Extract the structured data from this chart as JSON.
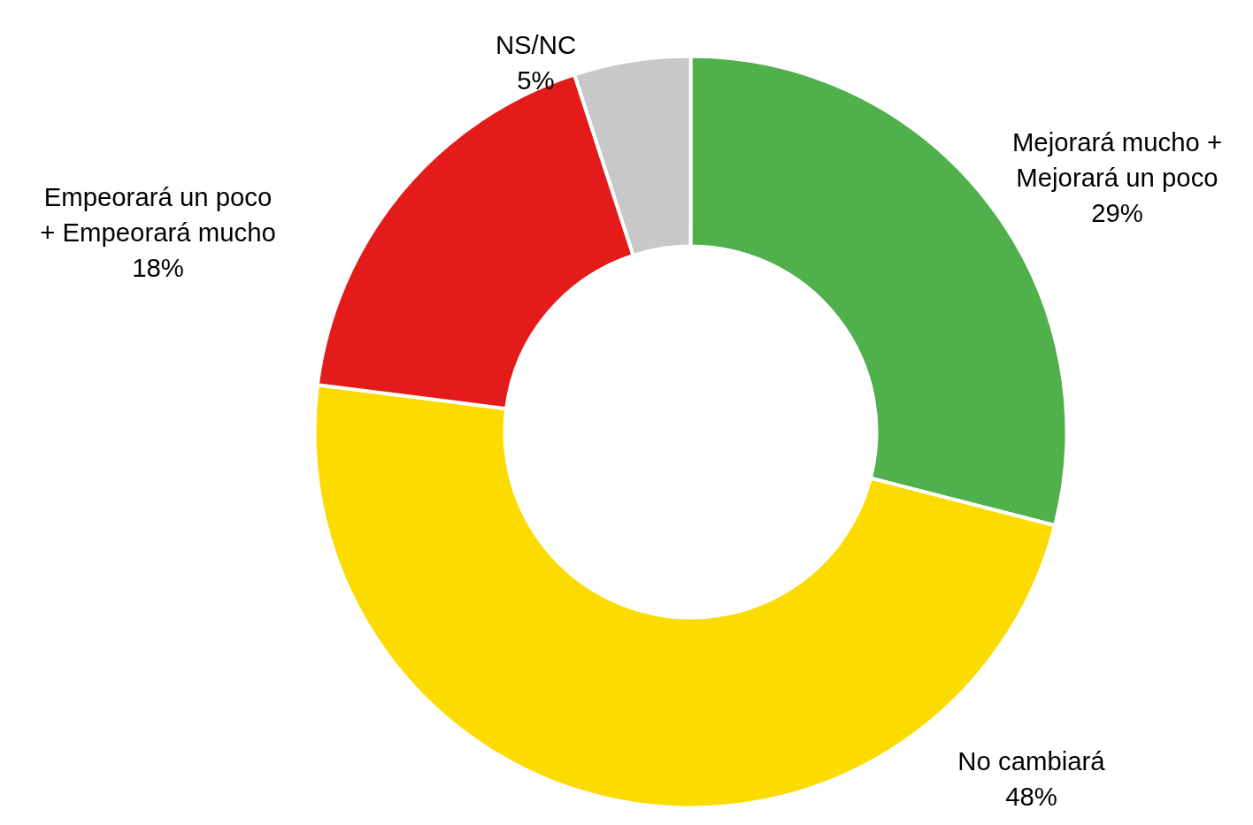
{
  "chart_data": {
    "type": "donut",
    "categories": [
      "Mejorará mucho + Mejorará un poco",
      "No cambiará",
      "Empeorará un poco + Empeorará mucho",
      "NS/NC"
    ],
    "values": [
      29,
      48,
      18,
      5
    ],
    "colors": [
      "#50b04c",
      "#fcdb00",
      "#e31b1b",
      "#c8c8c8"
    ],
    "value_labels": [
      "29%",
      "48%",
      "18%",
      "5%"
    ]
  }
}
